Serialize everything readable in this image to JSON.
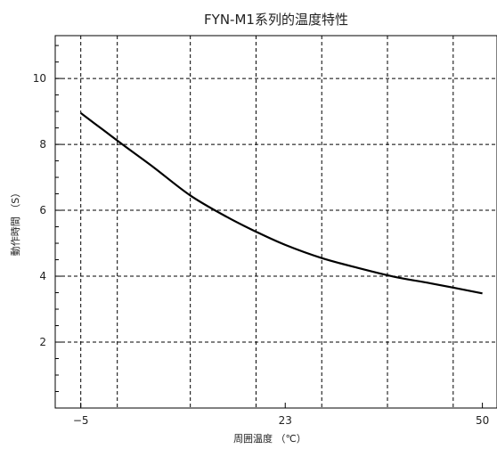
{
  "chart_data": {
    "type": "line",
    "title": "FYN-M1系列的温度特性",
    "xlabel": "周囲温度 （℃）",
    "ylabel": "動作時間 （S）",
    "xlim": [
      -8.5,
      52
    ],
    "ylim": [
      0,
      11.3
    ],
    "x_ticks": [
      -5,
      23,
      50
    ],
    "x_tick_labels": [
      "−5",
      "23",
      "50"
    ],
    "y_ticks": [
      2,
      4,
      6,
      8,
      10
    ],
    "y_tick_labels": [
      "2",
      "4",
      "6",
      "8",
      "10"
    ],
    "x_gridlines": [
      -5,
      0,
      10,
      19,
      28,
      37,
      46,
      52
    ],
    "y_gridlines": [
      2,
      4,
      6,
      8,
      10
    ],
    "grid": true,
    "series": [
      {
        "color": "#000000",
        "x": [
          -5,
          -2,
          1,
          5,
          10,
          15,
          19,
          23,
          28,
          33,
          38,
          43,
          50
        ],
        "y": [
          8.95,
          8.45,
          7.95,
          7.3,
          6.45,
          5.8,
          5.35,
          4.95,
          4.55,
          4.25,
          3.98,
          3.78,
          3.48
        ]
      }
    ]
  }
}
